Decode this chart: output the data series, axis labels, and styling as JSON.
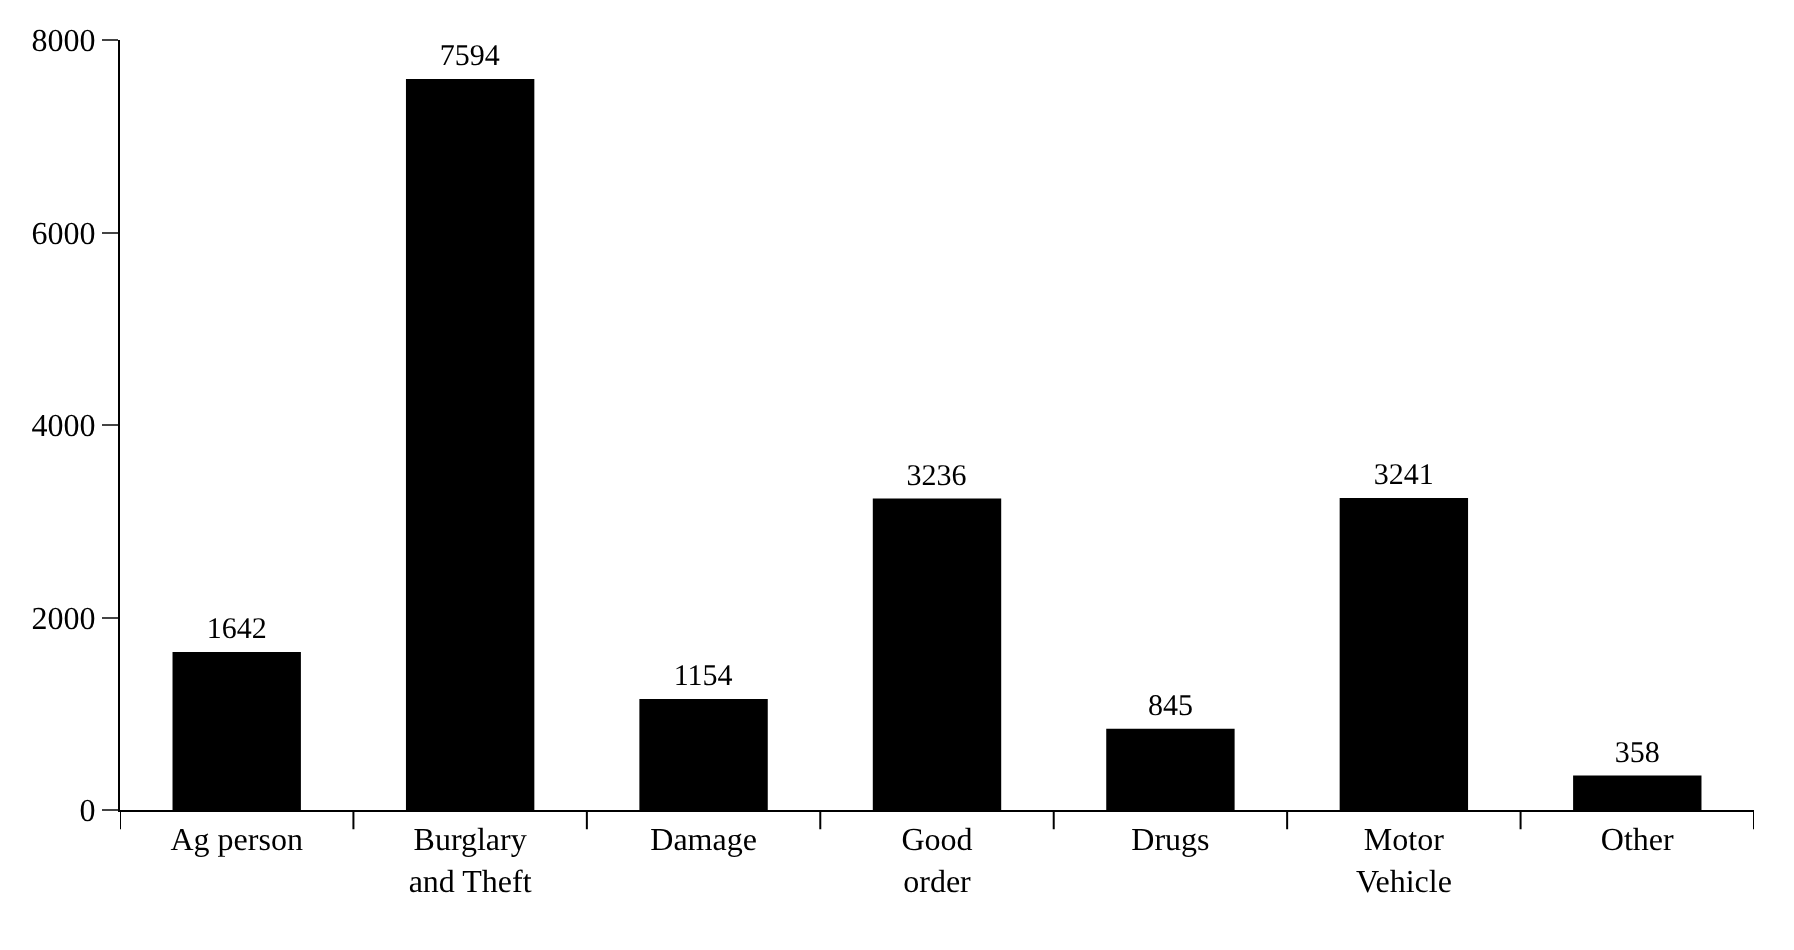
{
  "chart_data": {
    "type": "bar",
    "categories": [
      "Ag person",
      "Burglary and Theft",
      "Damage",
      "Good order",
      "Drugs",
      "Motor Vehicle",
      "Other"
    ],
    "values": [
      1642,
      7594,
      1154,
      3236,
      845,
      3241,
      358
    ],
    "color": "#000000",
    "ylim": [
      0,
      8000
    ],
    "yticks": [
      0,
      2000,
      4000,
      6000,
      8000
    ],
    "data_labels": true
  }
}
